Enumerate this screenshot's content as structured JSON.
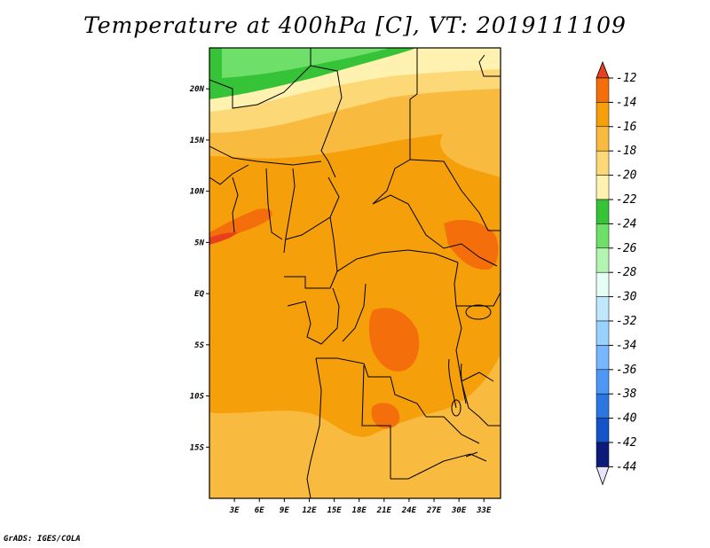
{
  "credit": "GrADS: IGES/COLA",
  "chart_data": {
    "type": "heatmap",
    "title": "Temperature at 400hPa [C], VT: 2019111109",
    "xlabel": "",
    "ylabel": "",
    "x_range_deg": [
      0,
      35
    ],
    "y_range_deg": [
      -20,
      24
    ],
    "x_ticks": [
      {
        "label": "3E",
        "value": 3
      },
      {
        "label": "6E",
        "value": 6
      },
      {
        "label": "9E",
        "value": 9
      },
      {
        "label": "12E",
        "value": 12
      },
      {
        "label": "15E",
        "value": 15
      },
      {
        "label": "18E",
        "value": 18
      },
      {
        "label": "21E",
        "value": 21
      },
      {
        "label": "24E",
        "value": 24
      },
      {
        "label": "27E",
        "value": 27
      },
      {
        "label": "30E",
        "value": 30
      },
      {
        "label": "33E",
        "value": 33
      }
    ],
    "y_ticks": [
      {
        "label": "20N",
        "value": 20
      },
      {
        "label": "15N",
        "value": 15
      },
      {
        "label": "10N",
        "value": 10
      },
      {
        "label": "5N",
        "value": 5
      },
      {
        "label": "EQ",
        "value": 0
      },
      {
        "label": "5S",
        "value": -5
      },
      {
        "label": "10S",
        "value": -10
      },
      {
        "label": "15S",
        "value": -15
      }
    ],
    "colorbar": {
      "levels": [
        "-12",
        "-14",
        "-16",
        "-18",
        "-20",
        "-22",
        "-24",
        "-26",
        "-28",
        "-30",
        "-32",
        "-34",
        "-36",
        "-38",
        "-40",
        "-42",
        "-44"
      ],
      "colors": [
        "#e8401e",
        "#f46e0c",
        "#f5a00a",
        "#f8bb40",
        "#fcd877",
        "#fff2b0",
        "#37c338",
        "#6ee06a",
        "#b3f5b0",
        "#e6fff6",
        "#bfe8ff",
        "#99d2ff",
        "#78b7ff",
        "#4d97f5",
        "#2a76e3",
        "#1554c8",
        "#0c1a78"
      ],
      "over_color": "#e8401e",
      "under_color": "#e6e4fa"
    },
    "regions": [
      {
        "lat": 23,
        "lon": 6,
        "value": -23,
        "color": "#37c338"
      },
      {
        "lat": 21,
        "lon": 10,
        "value": -21,
        "color": "#fff2b0"
      },
      {
        "lat": 17,
        "lon": 8,
        "value": -19,
        "color": "#fcd877"
      },
      {
        "lat": 16,
        "lon": 30,
        "value": -17,
        "color": "#f8bb40"
      },
      {
        "lat": 10,
        "lon": 15,
        "value": -15,
        "color": "#f5a00a"
      },
      {
        "lat": 0,
        "lon": 10,
        "value": -15,
        "color": "#f5a00a"
      },
      {
        "lat": 7.5,
        "lon": 4,
        "value": -13,
        "color": "#f46e0c"
      },
      {
        "lat": -6,
        "lon": 20,
        "value": -13,
        "color": "#f46e0c"
      },
      {
        "lat": -14,
        "lon": 28,
        "value": -17,
        "color": "#f8bb40"
      }
    ]
  }
}
